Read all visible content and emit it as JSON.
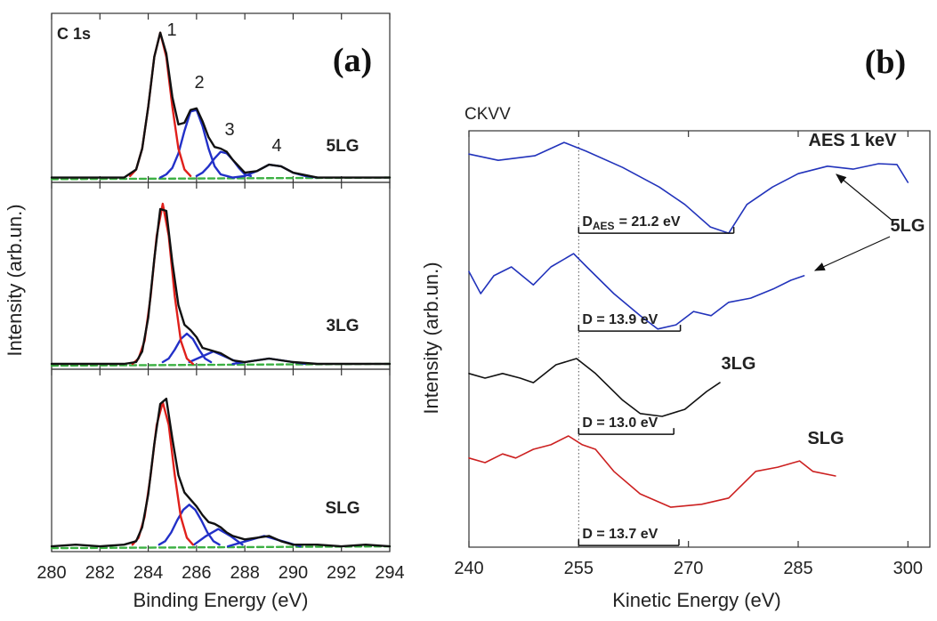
{
  "chart_data": [
    {
      "type": "line",
      "title": "C 1s",
      "panel_label": "(a)",
      "ylabel": "Intensity (arb.un.)",
      "sample_label": "5LG",
      "peak_labels": [
        "1",
        "2",
        "3",
        "4"
      ],
      "xlim": [
        280,
        294
      ],
      "ylim": [
        0,
        105
      ],
      "series": [
        {
          "color": "#3cb043",
          "dashed": true,
          "x": [
            280,
            294
          ],
          "values": [
            2,
            3
          ]
        },
        {
          "color": "#2230c8",
          "x": [
            284.5,
            284.75,
            285,
            285.25,
            285.5,
            285.75,
            286,
            286.25,
            286.5,
            286.75,
            287,
            287.25,
            287.5
          ],
          "values": [
            3,
            5,
            9,
            18,
            32,
            44,
            45,
            35,
            21,
            10,
            5,
            4,
            3
          ]
        },
        {
          "color": "#2230c8",
          "x": [
            286,
            286.25,
            286.5,
            286.75,
            287,
            287.25,
            287.5,
            287.75,
            288,
            288.25
          ],
          "values": [
            4,
            6,
            10,
            15,
            19,
            18,
            14,
            9,
            5,
            4
          ]
        },
        {
          "color": "#2230c8",
          "x": [
            287.5,
            288,
            288.5,
            289,
            289.5,
            290,
            290.5,
            291
          ],
          "values": [
            3,
            4,
            7,
            11,
            10,
            6,
            4,
            3
          ]
        },
        {
          "color": "#e0201b",
          "x": [
            283.25,
            283.5,
            283.75,
            284,
            284.25,
            284.5,
            284.75,
            285,
            285.25,
            285.5,
            285.75
          ],
          "values": [
            4,
            8,
            21,
            47,
            78,
            93,
            78,
            47,
            21,
            8,
            4
          ]
        },
        {
          "color": "#111111",
          "x": [
            280,
            281,
            282,
            283,
            283.5,
            283.75,
            284,
            284.25,
            284.5,
            284.75,
            285,
            285.25,
            285.5,
            285.75,
            286,
            286.25,
            286.5,
            286.75,
            287,
            287.25,
            287.5,
            288,
            288.5,
            289,
            289.5,
            290,
            291,
            292,
            293,
            294
          ],
          "values": [
            3,
            3,
            3,
            3,
            8,
            21,
            47,
            78,
            93,
            80,
            53,
            36,
            37,
            45,
            46,
            38,
            28,
            22,
            21,
            19,
            14,
            6,
            7,
            11,
            10,
            6,
            3,
            3,
            3,
            3
          ]
        }
      ]
    },
    {
      "type": "line",
      "sample_label": "3LG",
      "xlim": [
        280,
        294
      ],
      "ylim": [
        0,
        105
      ],
      "series": [
        {
          "color": "#3cb043",
          "dashed": true,
          "x": [
            280,
            294
          ],
          "values": [
            2,
            3
          ]
        },
        {
          "color": "#2230c8",
          "x": [
            284.6,
            284.85,
            285.1,
            285.35,
            285.6,
            285.85,
            286.1,
            286.35,
            286.6
          ],
          "values": [
            4,
            6,
            11,
            17,
            20,
            17,
            11,
            6,
            4
          ]
        },
        {
          "color": "#2230c8",
          "x": [
            285.7,
            286.2,
            286.7,
            287.2,
            287.7
          ],
          "values": [
            4,
            7,
            10,
            7,
            4
          ]
        },
        {
          "color": "#2230c8",
          "x": [
            287.5,
            288,
            288.5,
            289,
            289.5,
            290,
            290.5
          ],
          "values": [
            3,
            4,
            5,
            6,
            5,
            4,
            3
          ]
        },
        {
          "color": "#e0201b",
          "x": [
            283.35,
            283.6,
            283.85,
            284.1,
            284.35,
            284.6,
            284.85,
            285.1,
            285.35,
            285.6,
            285.85
          ],
          "values": [
            3,
            6,
            16,
            41,
            75,
            93,
            75,
            41,
            16,
            6,
            3
          ]
        },
        {
          "color": "#111111",
          "x": [
            280,
            281,
            282,
            283,
            283.5,
            283.75,
            284,
            284.25,
            284.5,
            284.75,
            285,
            285.25,
            285.5,
            285.75,
            286,
            286.25,
            286.5,
            286.75,
            287,
            287.25,
            287.5,
            288,
            288.5,
            289,
            289.5,
            290,
            291,
            292,
            293,
            294
          ],
          "values": [
            3,
            3,
            3,
            3,
            4,
            10,
            29,
            62,
            90,
            89,
            60,
            36,
            25,
            22,
            18,
            12,
            11,
            10,
            9,
            7,
            5,
            4,
            5,
            6,
            5,
            4,
            3,
            3,
            3,
            3
          ]
        }
      ]
    },
    {
      "type": "line",
      "sample_label": "SLG",
      "xlabel": "Binding Energy (eV)",
      "xlim": [
        280,
        294
      ],
      "ylim": [
        0,
        105
      ],
      "xticks": [
        280,
        282,
        284,
        286,
        288,
        290,
        292,
        294
      ],
      "series": [
        {
          "color": "#3cb043",
          "dashed": true,
          "x": [
            280,
            294
          ],
          "values": [
            2,
            3
          ]
        },
        {
          "color": "#2230c8",
          "x": [
            284.45,
            284.7,
            284.95,
            285.2,
            285.45,
            285.7,
            285.95,
            286.2,
            286.45,
            286.7,
            286.95
          ],
          "values": [
            4,
            6,
            11,
            18,
            24,
            27,
            24,
            18,
            11,
            6,
            4
          ]
        },
        {
          "color": "#2230c8",
          "x": [
            285.9,
            286.4,
            286.9,
            287.4,
            287.9
          ],
          "values": [
            4,
            9,
            13,
            9,
            4
          ]
        },
        {
          "color": "#2230c8",
          "x": [
            287.3,
            287.8,
            288.3,
            288.8,
            289.3,
            289.8,
            290.3
          ],
          "values": [
            3,
            5,
            7,
            9,
            7,
            5,
            3
          ]
        },
        {
          "color": "#e0201b",
          "x": [
            283.35,
            283.6,
            283.85,
            284.1,
            284.35,
            284.6,
            284.85,
            285.1,
            285.35,
            285.6,
            285.85
          ],
          "values": [
            4,
            8,
            20,
            44,
            73,
            86,
            73,
            44,
            20,
            8,
            4
          ]
        },
        {
          "color": "#111111",
          "x": [
            280,
            281,
            282,
            283,
            283.5,
            283.75,
            284,
            284.25,
            284.5,
            284.75,
            285,
            285.25,
            285.5,
            285.75,
            286,
            286.25,
            286.5,
            286.75,
            287,
            287.25,
            287.5,
            288,
            288.5,
            289,
            289.5,
            290,
            291,
            292,
            293,
            294
          ],
          "values": [
            3,
            4,
            3,
            4,
            6,
            14,
            33,
            62,
            85,
            88,
            65,
            44,
            34,
            30,
            26,
            21,
            17,
            16,
            14,
            11,
            9,
            7,
            8,
            9,
            6,
            4,
            4,
            3,
            4,
            3
          ]
        }
      ]
    },
    {
      "type": "line",
      "title": "CKVV",
      "panel_label": "(b)",
      "xlabel": "Kinetic Energy (eV)",
      "ylabel": "Intensity (arb.un.)",
      "curve_labels": [
        "AES 1 keV",
        "5LG",
        "3LG",
        "SLG"
      ],
      "xlim": [
        240,
        303
      ],
      "ylim": [
        0,
        100
      ],
      "xticks": [
        240,
        255,
        270,
        285,
        300
      ],
      "reference_x": 255,
      "series": [
        {
          "color": "#2233bb",
          "x": [
            240,
            244,
            249,
            253,
            256,
            261,
            266,
            269.5,
            273,
            275.5,
            278,
            281.5,
            285,
            289,
            292.5,
            296,
            298.5,
            300
          ],
          "values": [
            94.4,
            92.9,
            94,
            97.2,
            95.1,
            91.2,
            86.5,
            82.3,
            76.9,
            75.4,
            82.3,
            86.5,
            89.7,
            91.5,
            90.8,
            92.1,
            91.9,
            87.6
          ]
        },
        {
          "color": "#2233bb",
          "x": [
            240,
            241.6,
            243.4,
            245.8,
            248.8,
            251.2,
            254.3,
            256.1,
            259.8,
            263.4,
            265.8,
            268.3,
            270.7,
            273.1,
            275.5,
            278.5,
            281.6,
            284,
            285.8
          ],
          "values": [
            66.2,
            60.9,
            65.2,
            67.3,
            63,
            67.3,
            70.5,
            67.3,
            60.9,
            55.6,
            52.4,
            53.4,
            56.6,
            55.6,
            58.8,
            59.8,
            62,
            64.1,
            65.2
          ]
        },
        {
          "color": "#111111",
          "x": [
            240,
            242.2,
            244.6,
            247,
            248.8,
            251.9,
            254.7,
            257.3,
            261,
            263.4,
            266.4,
            269.5,
            272.5,
            274.3
          ],
          "values": [
            41.7,
            40.6,
            41.7,
            40.6,
            39.5,
            43.8,
            45.3,
            41.7,
            35.3,
            32.1,
            31.4,
            33.1,
            37.4,
            39.5
          ]
        },
        {
          "color": "#cc2020",
          "x": [
            240,
            242.2,
            244.6,
            246.4,
            248.8,
            251.2,
            253.6,
            255.5,
            257.3,
            259.8,
            263.4,
            267.6,
            271.8,
            275.5,
            279.2,
            282.2,
            285.2,
            287,
            290.1
          ],
          "values": [
            21.4,
            20.3,
            22.4,
            21.4,
            23.5,
            24.6,
            26.7,
            24.6,
            23.5,
            18.2,
            12.8,
            9.6,
            10.3,
            11.8,
            18.2,
            19.2,
            20.7,
            18.2,
            17.1
          ]
        }
      ],
      "annotations": [
        {
          "label": "D",
          "subscript": "AES",
          "label_rest": "= 21.2 eV",
          "x": [
            255,
            276.2
          ],
          "y": 75.4
        },
        {
          "label": "D = 13.9 eV",
          "x": [
            255,
            268.9
          ],
          "y": 51.9
        },
        {
          "label": "D = 13.0 eV",
          "x": [
            255,
            268
          ],
          "y": 27.1
        },
        {
          "label": "D = 13.7 eV",
          "x": [
            255,
            268.7
          ],
          "y": 0.4
        }
      ]
    }
  ]
}
